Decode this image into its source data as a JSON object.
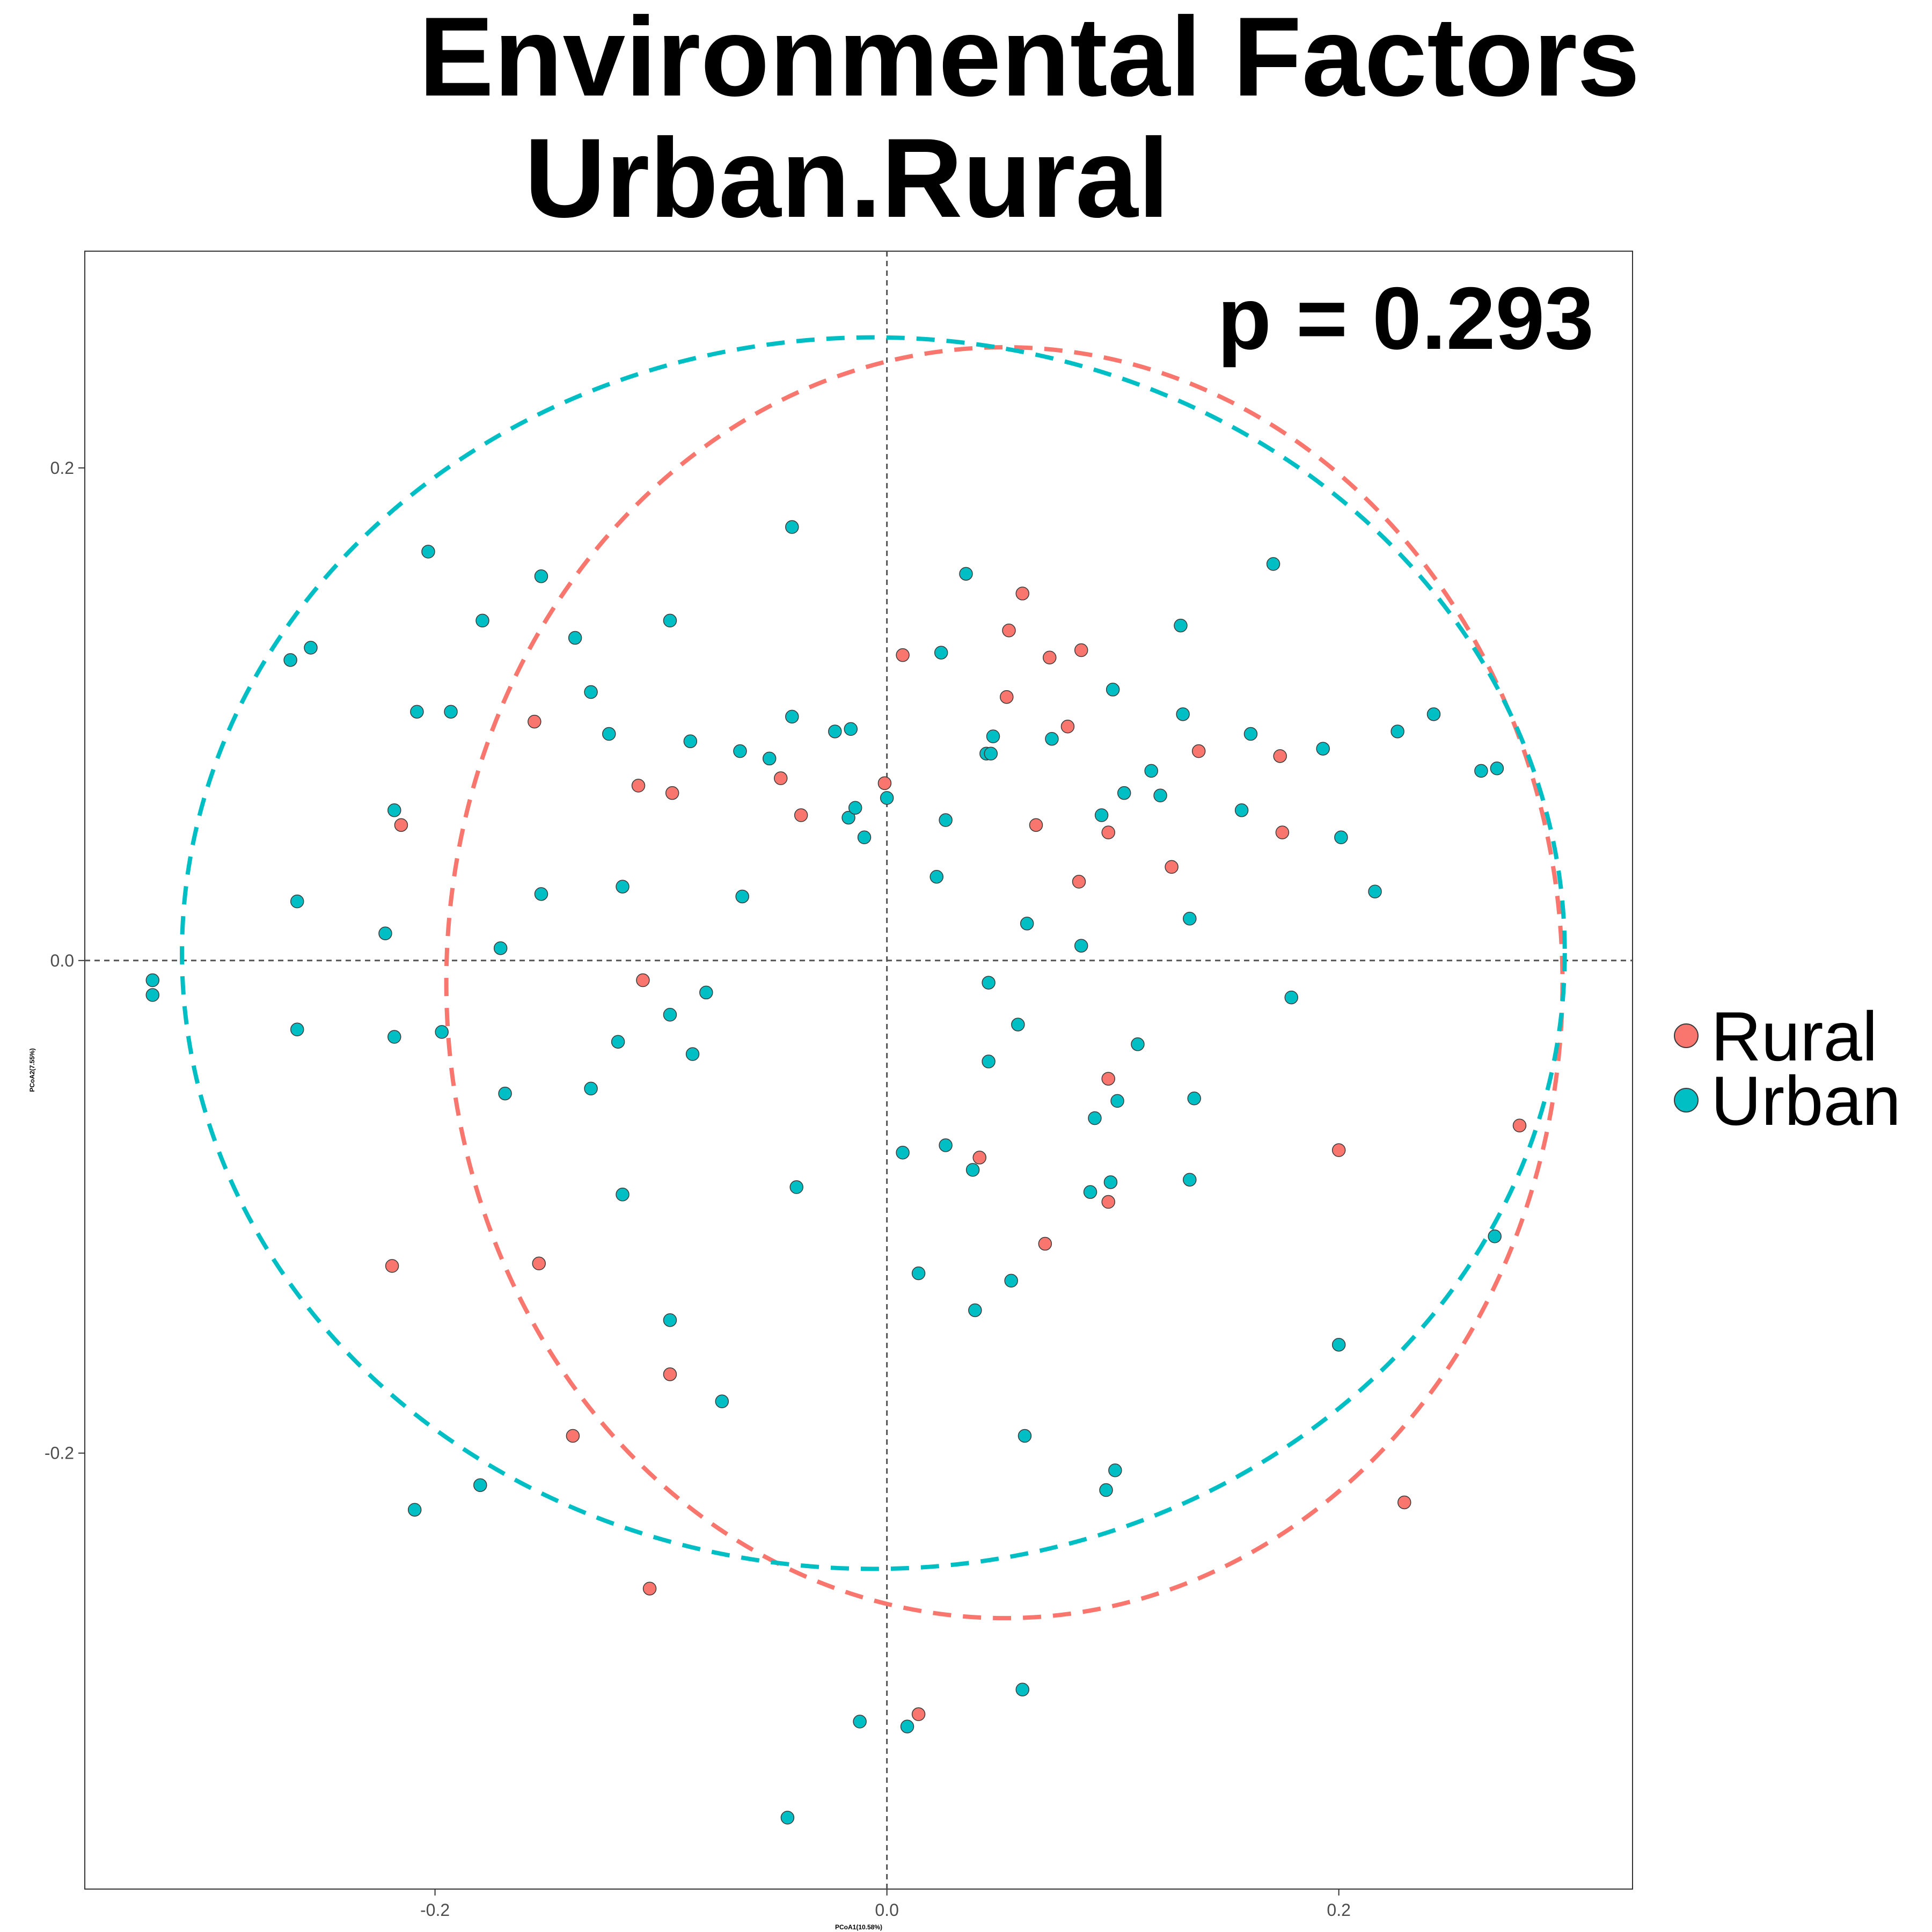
{
  "chart_data": {
    "type": "scatter",
    "title": [
      "Environmental Factors",
      "Urban.Rural"
    ],
    "annotation": "p = 0.293",
    "xlabel": "PCoA1(10.58%)",
    "ylabel": "PCoA2(7.55%)",
    "xlim": [
      -0.355,
      0.33
    ],
    "ylim": [
      -0.377,
      0.288
    ],
    "xticks": [
      -0.2,
      0.0,
      0.2
    ],
    "xtick_labels": [
      "-0.2",
      "0.0",
      "0.2"
    ],
    "yticks": [
      -0.2,
      0.0,
      0.2
    ],
    "ytick_labels": [
      "-0.2",
      "0.0",
      "0.2"
    ],
    "grid": false,
    "reference_lines": {
      "x": 0,
      "y": 0,
      "style": "dashed"
    },
    "legend": {
      "position": "right",
      "entries": [
        "Rural",
        "Urban"
      ]
    },
    "colors": {
      "Rural": "#F8766D",
      "Urban": "#00BFC4"
    },
    "series": [
      {
        "name": "Rural",
        "color": "#F8766D",
        "ellipse": {
          "cx": 0.052,
          "cy": -0.009,
          "rx": 0.247,
          "ry": 0.258
        },
        "points": [
          [
            -0.156,
            0.097
          ],
          [
            -0.11,
            0.071
          ],
          [
            -0.095,
            0.068
          ],
          [
            -0.047,
            0.074
          ],
          [
            -0.038,
            0.059
          ],
          [
            -0.215,
            0.055
          ],
          [
            -0.001,
            0.072
          ],
          [
            0.007,
            0.124
          ],
          [
            0.054,
            0.134
          ],
          [
            0.06,
            0.149
          ],
          [
            0.072,
            0.123
          ],
          [
            0.086,
            0.126
          ],
          [
            0.053,
            0.107
          ],
          [
            0.08,
            0.095
          ],
          [
            0.138,
            0.085
          ],
          [
            0.174,
            0.083
          ],
          [
            0.066,
            0.055
          ],
          [
            0.098,
            0.052
          ],
          [
            0.175,
            0.052
          ],
          [
            0.085,
            0.032
          ],
          [
            0.126,
            0.038
          ],
          [
            -0.108,
            -0.008
          ],
          [
            0.098,
            -0.048
          ],
          [
            0.041,
            -0.08
          ],
          [
            0.2,
            -0.077
          ],
          [
            0.28,
            -0.067
          ],
          [
            0.098,
            -0.098
          ],
          [
            0.07,
            -0.115
          ],
          [
            -0.219,
            -0.124
          ],
          [
            -0.154,
            -0.123
          ],
          [
            -0.096,
            -0.168
          ],
          [
            -0.139,
            -0.193
          ],
          [
            0.229,
            -0.22
          ],
          [
            -0.105,
            -0.255
          ],
          [
            0.014,
            -0.306
          ]
        ]
      },
      {
        "name": "Urban",
        "color": "#00BFC4",
        "ellipse": {
          "cx": -0.006,
          "cy": 0.003,
          "rx": 0.306,
          "ry": 0.25
        },
        "points": [
          [
            -0.042,
            0.176
          ],
          [
            -0.203,
            0.166
          ],
          [
            -0.153,
            0.156
          ],
          [
            0.035,
            0.157
          ],
          [
            0.171,
            0.161
          ],
          [
            -0.179,
            0.138
          ],
          [
            -0.096,
            0.138
          ],
          [
            -0.138,
            0.131
          ],
          [
            -0.264,
            0.122
          ],
          [
            -0.255,
            0.127
          ],
          [
            0.024,
            0.125
          ],
          [
            0.13,
            0.136
          ],
          [
            -0.131,
            0.109
          ],
          [
            0.1,
            0.11
          ],
          [
            -0.208,
            0.101
          ],
          [
            -0.193,
            0.101
          ],
          [
            -0.042,
            0.099
          ],
          [
            -0.123,
            0.092
          ],
          [
            -0.087,
            0.089
          ],
          [
            -0.023,
            0.093
          ],
          [
            -0.016,
            0.094
          ],
          [
            0.047,
            0.091
          ],
          [
            0.073,
            0.09
          ],
          [
            0.131,
            0.1
          ],
          [
            0.161,
            0.092
          ],
          [
            0.226,
            0.093
          ],
          [
            0.242,
            0.1
          ],
          [
            -0.065,
            0.085
          ],
          [
            -0.052,
            0.082
          ],
          [
            0.044,
            0.084
          ],
          [
            0.046,
            0.084
          ],
          [
            0.193,
            0.086
          ],
          [
            0.263,
            0.077
          ],
          [
            0.27,
            0.078
          ],
          [
            -0.218,
            0.061
          ],
          [
            -0.017,
            0.058
          ],
          [
            -0.014,
            0.062
          ],
          [
            -0.01,
            0.05
          ],
          [
            0,
            0.066
          ],
          [
            0.026,
            0.057
          ],
          [
            0.095,
            0.059
          ],
          [
            0.105,
            0.068
          ],
          [
            0.117,
            0.077
          ],
          [
            0.121,
            0.067
          ],
          [
            0.157,
            0.061
          ],
          [
            0.201,
            0.05
          ],
          [
            -0.261,
            0.024
          ],
          [
            -0.153,
            0.027
          ],
          [
            -0.117,
            0.03
          ],
          [
            -0.064,
            0.026
          ],
          [
            0.022,
            0.034
          ],
          [
            0.062,
            0.015
          ],
          [
            0.134,
            0.017
          ],
          [
            0.216,
            0.028
          ],
          [
            -0.222,
            0.011
          ],
          [
            -0.171,
            0.005
          ],
          [
            0.086,
            0.006
          ],
          [
            -0.325,
            -0.008
          ],
          [
            -0.325,
            -0.014
          ],
          [
            -0.261,
            -0.028
          ],
          [
            -0.218,
            -0.031
          ],
          [
            -0.197,
            -0.029
          ],
          [
            -0.08,
            -0.013
          ],
          [
            0.045,
            -0.009
          ],
          [
            0.179,
            -0.015
          ],
          [
            -0.119,
            -0.033
          ],
          [
            -0.096,
            -0.022
          ],
          [
            -0.086,
            -0.038
          ],
          [
            0.058,
            -0.026
          ],
          [
            0.045,
            -0.041
          ],
          [
            -0.169,
            -0.054
          ],
          [
            -0.131,
            -0.052
          ],
          [
            0.111,
            -0.034
          ],
          [
            0.102,
            -0.057
          ],
          [
            0.092,
            -0.064
          ],
          [
            0.136,
            -0.056
          ],
          [
            0.007,
            -0.078
          ],
          [
            0.026,
            -0.075
          ],
          [
            0.038,
            -0.085
          ],
          [
            -0.04,
            -0.092
          ],
          [
            -0.117,
            -0.095
          ],
          [
            0.09,
            -0.094
          ],
          [
            0.099,
            -0.09
          ],
          [
            0.134,
            -0.089
          ],
          [
            0.269,
            -0.112
          ],
          [
            0.014,
            -0.127
          ],
          [
            0.055,
            -0.13
          ],
          [
            0.039,
            -0.142
          ],
          [
            -0.096,
            -0.146
          ],
          [
            -0.073,
            -0.179
          ],
          [
            0.2,
            -0.156
          ],
          [
            0.061,
            -0.193
          ],
          [
            -0.18,
            -0.213
          ],
          [
            0.101,
            -0.207
          ],
          [
            0.097,
            -0.215
          ],
          [
            -0.209,
            -0.223
          ],
          [
            0.06,
            -0.296
          ],
          [
            -0.012,
            -0.309
          ],
          [
            0.009,
            -0.311
          ],
          [
            -0.044,
            -0.348
          ]
        ]
      }
    ]
  }
}
